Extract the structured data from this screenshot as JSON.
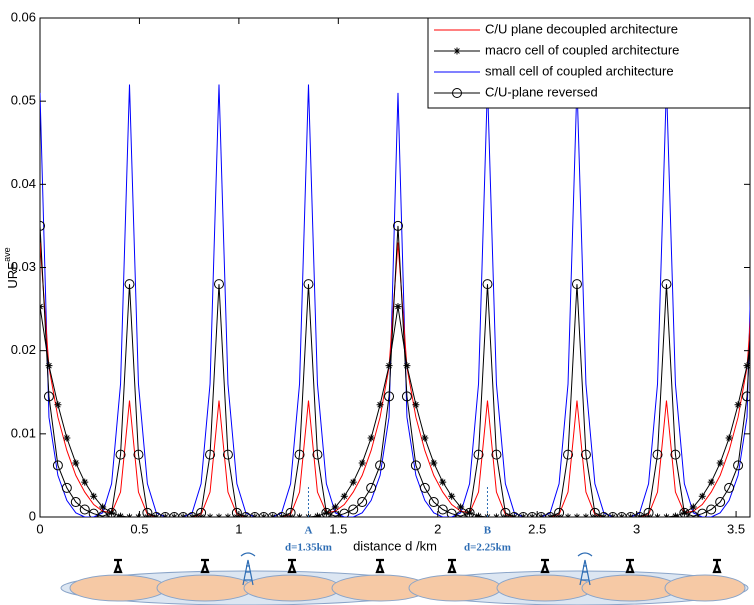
{
  "chart_data": {
    "type": "line",
    "xlabel": "distance d  /km",
    "ylabel": {
      "base": "URF",
      "sup": "ave"
    },
    "xlim": [
      0,
      3.57
    ],
    "ylim": [
      0,
      0.06
    ],
    "xticks": [
      0,
      0.5,
      1,
      1.5,
      2,
      2.5,
      3,
      3.5
    ],
    "yticks": [
      0,
      0.01,
      0.02,
      0.03,
      0.04,
      0.05,
      0.06
    ],
    "legend": "upper right",
    "x": [
      0,
      0.045,
      0.09,
      0.135,
      0.18,
      0.225,
      0.27,
      0.315,
      0.36,
      0.405,
      0.45,
      0.495,
      0.54,
      0.585,
      0.63,
      0.675,
      0.72,
      0.765,
      0.81,
      0.855,
      0.9,
      0.945,
      0.99,
      1.035,
      1.08,
      1.125,
      1.17,
      1.215,
      1.26,
      1.305,
      1.35,
      1.395,
      1.44,
      1.485,
      1.53,
      1.575,
      1.62,
      1.665,
      1.71,
      1.755,
      1.8,
      1.845,
      1.89,
      1.935,
      1.98,
      2.025,
      2.07,
      2.115,
      2.16,
      2.205,
      2.25,
      2.295,
      2.34,
      2.385,
      2.43,
      2.475,
      2.52,
      2.565,
      2.61,
      2.655,
      2.7,
      2.745,
      2.79,
      2.835,
      2.88,
      2.925,
      2.97,
      3.015,
      3.06,
      3.105,
      3.15,
      3.195,
      3.24,
      3.285,
      3.33,
      3.375,
      3.42,
      3.465,
      3.51,
      3.555,
      3.6
    ],
    "series": [
      {
        "name": "C/U plane decoupled architecture",
        "color": "#ff0000",
        "marker": "none",
        "values": [
          0.033,
          0.018,
          0.012,
          0.008,
          0.005,
          0.003,
          0.0015,
          0.0007,
          0.0005,
          0.003,
          0.014,
          0.003,
          0.0003,
          0,
          0,
          0,
          0,
          0,
          0.0003,
          0.003,
          0.014,
          0.003,
          0.0003,
          0,
          0,
          0,
          0,
          0,
          0.0003,
          0.003,
          0.014,
          0.003,
          0.0005,
          0.0007,
          0.0015,
          0.003,
          0.005,
          0.008,
          0.012,
          0.018,
          0.033,
          0.018,
          0.012,
          0.008,
          0.005,
          0.003,
          0.0015,
          0.0007,
          0.0005,
          0.003,
          0.014,
          0.003,
          0.0003,
          0,
          0,
          0,
          0,
          0,
          0.0003,
          0.003,
          0.014,
          0.003,
          0.0003,
          0,
          0,
          0,
          0,
          0,
          0.0003,
          0.003,
          0.014,
          0.003,
          0.0005,
          0.0007,
          0.0015,
          0.003,
          0.005,
          0.008,
          0.012,
          0.018,
          0.033
        ]
      },
      {
        "name": "macro cell of coupled architecture",
        "color": "#000000",
        "marker": "star",
        "values": [
          0.0253,
          0.0182,
          0.0135,
          0.0095,
          0.0065,
          0.0042,
          0.0025,
          0.0012,
          0.0005,
          0.0001,
          0,
          0,
          0,
          0,
          0,
          0,
          0,
          0,
          0,
          0,
          0,
          0,
          0,
          0,
          0,
          0,
          0,
          0,
          0,
          0,
          0,
          0.0001,
          0.0005,
          0.0012,
          0.0025,
          0.0042,
          0.0065,
          0.0095,
          0.0135,
          0.0182,
          0.0253,
          0.0182,
          0.0135,
          0.0095,
          0.0065,
          0.0042,
          0.0025,
          0.0012,
          0.0005,
          0.0001,
          0,
          0,
          0,
          0,
          0,
          0,
          0,
          0,
          0,
          0,
          0,
          0,
          0,
          0,
          0,
          0,
          0,
          0,
          0,
          0,
          0,
          0.0001,
          0.0005,
          0.0012,
          0.0025,
          0.0042,
          0.0065,
          0.0095,
          0.0135,
          0.0182,
          0.0253
        ]
      },
      {
        "name": "small cell of coupled architecture",
        "color": "#0000ff",
        "marker": "none",
        "values": [
          0.051,
          0.012,
          0.005,
          0.002,
          0.0005,
          0,
          0,
          0.0005,
          0.004,
          0.016,
          0.052,
          0.016,
          0.004,
          0.0005,
          0,
          0,
          0,
          0.0005,
          0.004,
          0.016,
          0.052,
          0.016,
          0.004,
          0.0005,
          0,
          0,
          0,
          0.0005,
          0.004,
          0.016,
          0.052,
          0.016,
          0.004,
          0.0005,
          0,
          0,
          0.0005,
          0.002,
          0.005,
          0.012,
          0.051,
          0.012,
          0.005,
          0.002,
          0.0005,
          0,
          0,
          0.0005,
          0.004,
          0.016,
          0.052,
          0.016,
          0.004,
          0.0005,
          0,
          0,
          0,
          0.0005,
          0.004,
          0.016,
          0.052,
          0.016,
          0.004,
          0.0005,
          0,
          0,
          0,
          0.0005,
          0.004,
          0.016,
          0.052,
          0.016,
          0.004,
          0.0005,
          0,
          0,
          0.0005,
          0.002,
          0.005,
          0.012,
          0.051
        ]
      },
      {
        "name": "C/U-plane reversed",
        "color": "#000000",
        "marker": "circle",
        "values": [
          0.035,
          0.0145,
          0.0062,
          0.0035,
          0.0018,
          0.0009,
          0.0004,
          0.0001,
          0.0005,
          0.0075,
          0.028,
          0.0075,
          0.0005,
          0,
          0,
          0,
          0,
          0,
          0.0005,
          0.0075,
          0.028,
          0.0075,
          0.0005,
          0,
          0,
          0,
          0,
          0,
          0.0005,
          0.0075,
          0.028,
          0.0075,
          0.0005,
          0.0001,
          0.0004,
          0.0009,
          0.0018,
          0.0035,
          0.0062,
          0.0145,
          0.035,
          0.0145,
          0.0062,
          0.0035,
          0.0018,
          0.0009,
          0.0004,
          0.0001,
          0.0005,
          0.0075,
          0.028,
          0.0075,
          0.0005,
          0,
          0,
          0,
          0,
          0,
          0.0005,
          0.0075,
          0.028,
          0.0075,
          0.0005,
          0,
          0,
          0,
          0,
          0,
          0.0005,
          0.0075,
          0.028,
          0.0075,
          0.0005,
          0.0001,
          0.0004,
          0.0009,
          0.0018,
          0.0035,
          0.0062,
          0.0145,
          0.035
        ]
      }
    ],
    "annotations": [
      {
        "x": 1.35,
        "letter": "A",
        "text": "d=1.35km"
      },
      {
        "x": 2.25,
        "letter": "B",
        "text": "d=2.25km"
      }
    ]
  }
}
